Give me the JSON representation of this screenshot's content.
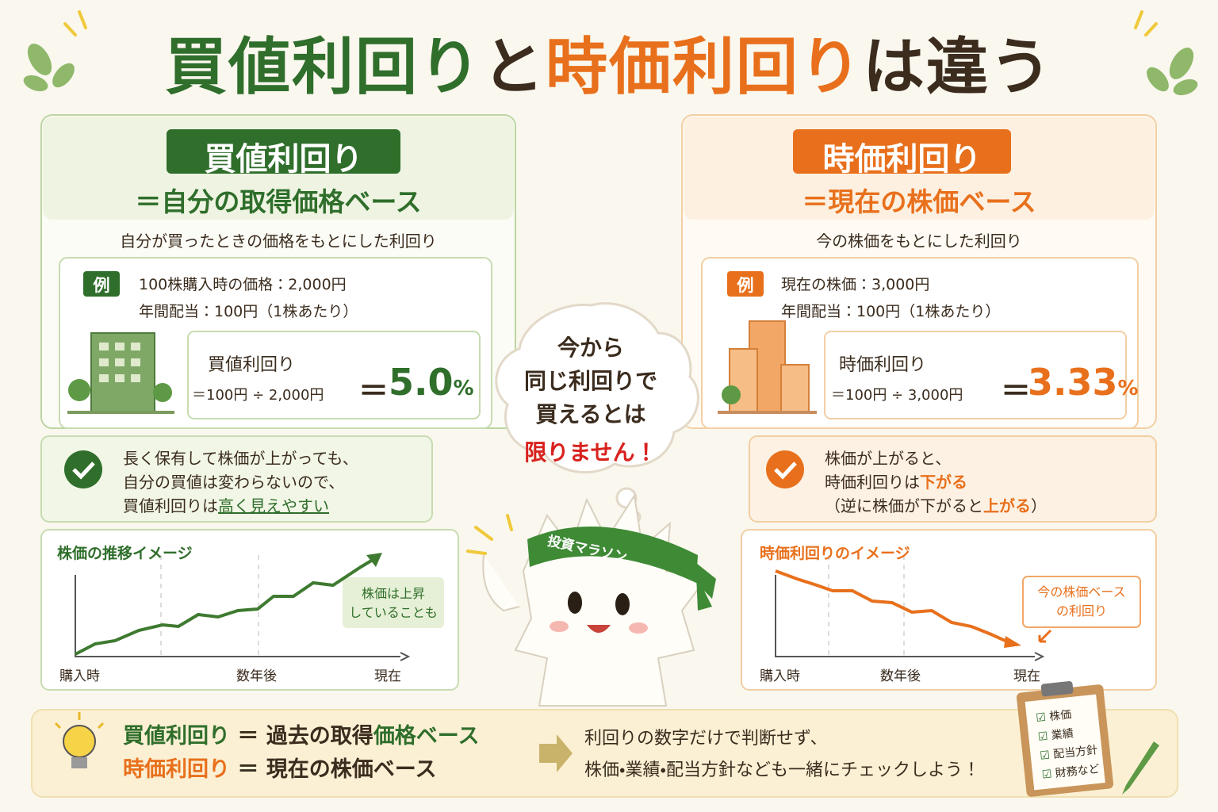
{
  "title": {
    "part1": "買値利回り",
    "part2": "と",
    "part3": "時価利回り",
    "part4": "は違う"
  },
  "left": {
    "badge": "買値利回り",
    "subtitle": "＝自分の取得価格ベース",
    "description": "自分が買ったときの価格をもとにした利回り",
    "example": {
      "tag": "例",
      "line1": "100株購入時の価格：2,000円",
      "line2": "年間配当：100円（1株あたり）"
    },
    "calc": {
      "label": "買値利回り",
      "formula": "＝100円 ÷ 2,000円",
      "equals": "＝",
      "result": "5.0",
      "unit": "%"
    },
    "point": {
      "line1": "長く保有して株価が上がっても、",
      "line2": "自分の買値は変わらないので、",
      "line3a": "買値利回りは",
      "line3b": "高く見えやすい"
    },
    "chart": {
      "title": "株価の推移イメージ",
      "note1": "株価は上昇",
      "note2": "していることも",
      "xlabels": [
        "購入時",
        "数年後",
        "現在"
      ]
    }
  },
  "right": {
    "badge": "時価利回り",
    "subtitle": "＝現在の株価ベース",
    "description": "今の株価をもとにした利回り",
    "example": {
      "tag": "例",
      "line1": "現在の株価：3,000円",
      "line2": "年間配当：100円（1株あたり）"
    },
    "calc": {
      "label": "時価利回り",
      "formula": "＝100円 ÷ 3,000円",
      "equals": "＝",
      "result": "3.33",
      "unit": "%"
    },
    "point": {
      "line1": "株価が上がると、",
      "line2a": "時価利回りは",
      "line2b": "下がる",
      "line3a": "（逆に株価が下がると",
      "line3b": "上がる",
      "line3c": "）"
    },
    "chart": {
      "title": "時価利回りのイメージ",
      "note1": "今の株価ベース",
      "note2": "の利回り",
      "xlabels": [
        "購入時",
        "数年後",
        "現在"
      ]
    }
  },
  "center": {
    "bubble": [
      "今から",
      "同じ利回りで",
      "買えるとは",
      "限りません！"
    ],
    "headband": "投資マラソン"
  },
  "footer": {
    "line1a": "買値利回り",
    "line1b": "＝ 過去の取得",
    "line1c": "価格ベース",
    "line2a": "時価利回り",
    "line2b": "＝ 現在の株価ベース",
    "advice1": "利回りの数字だけで判断せず、",
    "advice2": "株価・業績・配当方針なども一緒にチェックしよう！",
    "checklist": [
      "株価",
      "業績",
      "配当方針",
      "財務など"
    ]
  }
}
